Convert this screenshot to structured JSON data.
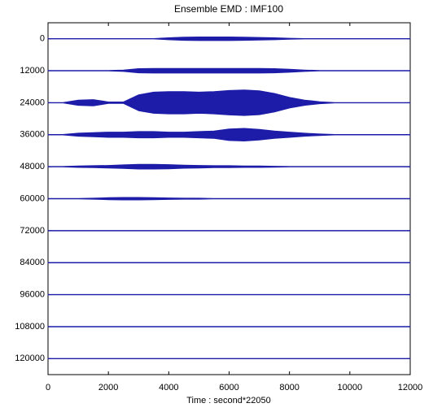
{
  "chart_data": {
    "type": "band",
    "title": "Ensemble EMD : IMF100",
    "x_label": "Time : second*22050",
    "xlim": [
      0,
      12000
    ],
    "xticks": [
      0,
      2000,
      4000,
      6000,
      8000,
      10000,
      12000
    ],
    "ylim": [
      126000,
      -6000
    ],
    "yticks": [
      0,
      12000,
      24000,
      36000,
      48000,
      60000,
      72000,
      84000,
      96000,
      108000,
      120000
    ],
    "color": "#1c1ca8",
    "x": [
      0,
      500,
      1000,
      1500,
      2000,
      2500,
      3000,
      3500,
      4000,
      4500,
      5000,
      5500,
      6000,
      6500,
      7000,
      7500,
      8000,
      8500,
      9000,
      9500,
      10000,
      10500,
      11000,
      11500,
      12000
    ],
    "series": [
      {
        "values": [
          -100,
          -100,
          -100,
          -100,
          -100,
          -100,
          -100,
          -100,
          -400,
          -600,
          -700,
          -700,
          -700,
          -600,
          -500,
          -400,
          -200,
          -100,
          -100,
          -100,
          -100,
          -100,
          -100,
          -100,
          -100
        ],
        "lower": [
          100,
          100,
          100,
          100,
          100,
          100,
          100,
          100,
          400,
          600,
          700,
          700,
          700,
          600,
          500,
          400,
          200,
          100,
          100,
          100,
          100,
          100,
          100,
          100,
          100
        ]
      },
      {
        "values": [
          11900,
          11900,
          11900,
          11900,
          11900,
          11700,
          11200,
          11100,
          11100,
          11100,
          11100,
          11100,
          11100,
          11100,
          11100,
          11200,
          11400,
          11700,
          11900,
          11900,
          11900,
          11900,
          11900,
          11900,
          11900
        ],
        "lower": [
          12100,
          12100,
          12100,
          12100,
          12100,
          12300,
          12800,
          12900,
          12900,
          12900,
          12900,
          12900,
          12900,
          12900,
          12900,
          12800,
          12600,
          12300,
          12100,
          12100,
          12100,
          12100,
          12100,
          12100,
          12100
        ]
      },
      {
        "values": [
          23900,
          23900,
          23000,
          22800,
          23700,
          23700,
          21000,
          20000,
          19800,
          19800,
          20000,
          19800,
          19400,
          19200,
          19500,
          20500,
          22000,
          23000,
          23600,
          23900,
          23900,
          23900,
          23900,
          23900,
          23900
        ],
        "lower": [
          24100,
          24100,
          25000,
          25200,
          24300,
          24300,
          27000,
          28000,
          28200,
          28200,
          28000,
          28200,
          28600,
          28800,
          28500,
          27500,
          26000,
          25000,
          24400,
          24100,
          24100,
          24100,
          24100,
          24100,
          24100
        ]
      },
      {
        "values": [
          35900,
          35900,
          35400,
          35200,
          35000,
          35000,
          34800,
          34800,
          35000,
          35000,
          34800,
          34600,
          33800,
          33600,
          34000,
          34600,
          35000,
          35400,
          35700,
          35900,
          35900,
          35900,
          35900,
          35900,
          35900
        ],
        "lower": [
          36100,
          36100,
          36600,
          36800,
          37000,
          37000,
          37200,
          37200,
          37000,
          37000,
          37200,
          37400,
          38200,
          38400,
          38000,
          37400,
          37000,
          36600,
          36300,
          36100,
          36100,
          36100,
          36100,
          36100,
          36100
        ]
      },
      {
        "values": [
          47900,
          47900,
          47700,
          47600,
          47500,
          47300,
          47100,
          47100,
          47200,
          47400,
          47500,
          47600,
          47600,
          47700,
          47700,
          47800,
          47900,
          47900,
          47900,
          47900,
          47900,
          47900,
          47900,
          47900,
          47900
        ],
        "lower": [
          48100,
          48100,
          48300,
          48400,
          48500,
          48700,
          48900,
          48900,
          48800,
          48600,
          48500,
          48400,
          48400,
          48300,
          48300,
          48200,
          48100,
          48100,
          48100,
          48100,
          48100,
          48100,
          48100,
          48100,
          48100
        ]
      },
      {
        "values": [
          59900,
          59900,
          59900,
          59800,
          59600,
          59500,
          59500,
          59600,
          59700,
          59800,
          59800,
          59900,
          59900,
          59900,
          59900,
          59900,
          59900,
          59900,
          59900,
          59900,
          59900,
          59900,
          59900,
          59900,
          59900
        ],
        "lower": [
          60100,
          60100,
          60100,
          60200,
          60400,
          60500,
          60500,
          60400,
          60300,
          60200,
          60200,
          60100,
          60100,
          60100,
          60100,
          60100,
          60100,
          60100,
          60100,
          60100,
          60100,
          60100,
          60100,
          60100,
          60100
        ]
      },
      {
        "values": [
          71900,
          71900,
          71900,
          71900,
          71900,
          71900,
          71900,
          71900,
          71900,
          71900,
          71900,
          71900,
          71900,
          71900,
          71900,
          71900,
          71900,
          71900,
          71900,
          71900,
          71900,
          71900,
          71900,
          71900,
          71900
        ],
        "lower": [
          72100,
          72100,
          72100,
          72100,
          72100,
          72100,
          72100,
          72100,
          72100,
          72100,
          72100,
          72100,
          72100,
          72100,
          72100,
          72100,
          72100,
          72100,
          72100,
          72100,
          72100,
          72100,
          72100,
          72100,
          72100
        ]
      },
      {
        "values": [
          83900,
          83900,
          83900,
          83900,
          83900,
          83900,
          83900,
          83900,
          83900,
          83900,
          83900,
          83900,
          83900,
          83900,
          83900,
          83900,
          83900,
          83900,
          83900,
          83900,
          83900,
          83900,
          83900,
          83900,
          83900
        ],
        "lower": [
          84100,
          84100,
          84100,
          84100,
          84100,
          84100,
          84100,
          84100,
          84100,
          84100,
          84100,
          84100,
          84100,
          84100,
          84100,
          84100,
          84100,
          84100,
          84100,
          84100,
          84100,
          84100,
          84100,
          84100,
          84100
        ]
      },
      {
        "values": [
          95900,
          95900,
          95900,
          95900,
          95900,
          95900,
          95900,
          95900,
          95900,
          95900,
          95900,
          95900,
          95900,
          95900,
          95900,
          95900,
          95900,
          95900,
          95900,
          95900,
          95900,
          95900,
          95900,
          95900,
          95900
        ],
        "lower": [
          96100,
          96100,
          96100,
          96100,
          96100,
          96100,
          96100,
          96100,
          96100,
          96100,
          96100,
          96100,
          96100,
          96100,
          96100,
          96100,
          96100,
          96100,
          96100,
          96100,
          96100,
          96100,
          96100,
          96100,
          96100
        ]
      },
      {
        "values": [
          107900,
          107900,
          107900,
          107900,
          107900,
          107900,
          107900,
          107900,
          107900,
          107900,
          107900,
          107900,
          107900,
          107900,
          107900,
          107900,
          107900,
          107900,
          107900,
          107900,
          107900,
          107900,
          107900,
          107900,
          107900
        ],
        "lower": [
          108100,
          108100,
          108100,
          108100,
          108100,
          108100,
          108100,
          108100,
          108100,
          108100,
          108100,
          108100,
          108100,
          108100,
          108100,
          108100,
          108100,
          108100,
          108100,
          108100,
          108100,
          108100,
          108100,
          108100,
          108100
        ]
      },
      {
        "values": [
          119900,
          119900,
          119900,
          119900,
          119900,
          119900,
          119900,
          119900,
          119900,
          119900,
          119900,
          119900,
          119900,
          119900,
          119900,
          119900,
          119900,
          119900,
          119900,
          119900,
          119900,
          119900,
          119900,
          119900,
          119900
        ],
        "lower": [
          120100,
          120100,
          120100,
          120100,
          120100,
          120100,
          120100,
          120100,
          120100,
          120100,
          120100,
          120100,
          120100,
          120100,
          120100,
          120100,
          120100,
          120100,
          120100,
          120100,
          120100,
          120100,
          120100,
          120100,
          120100
        ]
      }
    ]
  }
}
